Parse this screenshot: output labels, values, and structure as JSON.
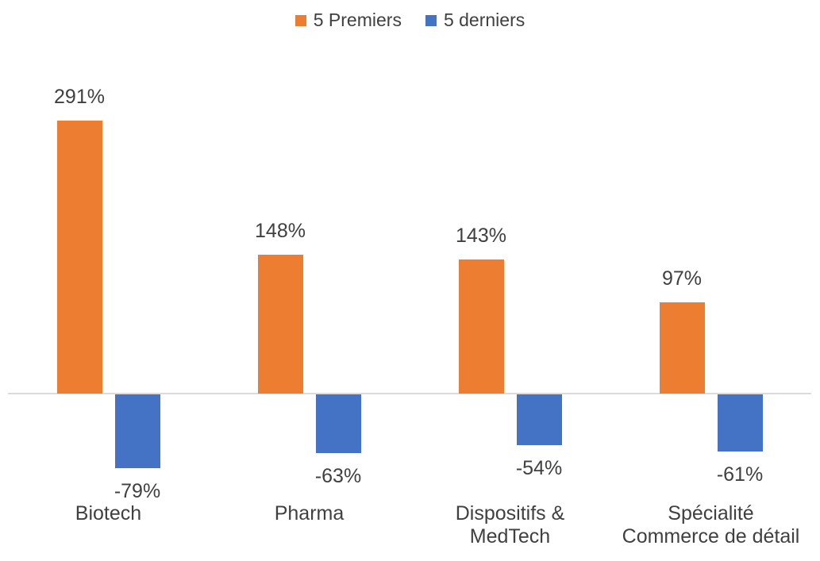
{
  "chart_data": {
    "type": "bar",
    "title": "",
    "xlabel": "",
    "ylabel": "",
    "value_suffix": "%",
    "categories": [
      "Biotech",
      "Pharma",
      "Dispositifs & MedTech",
      "Spécialité Commerce de détail"
    ],
    "category_lines": [
      [
        "Biotech"
      ],
      [
        "Pharma"
      ],
      [
        "Dispositifs &",
        "MedTech"
      ],
      [
        "Spécialité",
        "Commerce de détail"
      ]
    ],
    "series": [
      {
        "name": "5 Premiers",
        "color": "#ED7D31",
        "values": [
          291,
          148,
          143,
          97
        ],
        "labels": [
          "291%",
          "148%",
          "143%",
          "97%"
        ]
      },
      {
        "name": "5 derniers",
        "color": "#4472C4",
        "values": [
          -79,
          -63,
          -54,
          -61
        ],
        "labels": [
          "-79%",
          "-63%",
          "-54%",
          "-61%"
        ]
      }
    ],
    "ylim": [
      -120,
      320
    ],
    "grid": false,
    "legend_position": "top"
  },
  "colors": {
    "axis_line": "#DBDBDB",
    "text": "#404040",
    "background": "#FFFFFF"
  }
}
